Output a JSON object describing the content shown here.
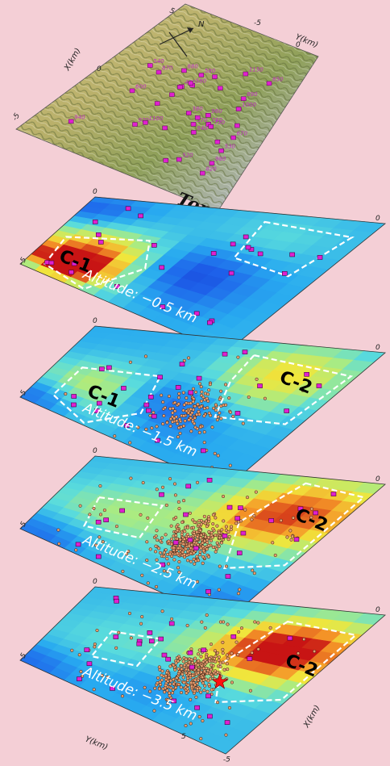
{
  "topo": {
    "label": "Topo",
    "north": "N",
    "x_axis": "X(km)",
    "y_axis": "Y(km)",
    "ticks": [
      "-5",
      "0",
      "5"
    ],
    "station_labels": [
      "940",
      "880",
      "760",
      "920",
      "730",
      "940",
      "890",
      "1100",
      "1150",
      "960",
      "980",
      "600",
      "530",
      "570",
      "820",
      "450",
      "1000",
      "870",
      "580",
      "670",
      "520",
      "540",
      "380",
      "580",
      "850"
    ]
  },
  "layers": [
    {
      "altitude": "Altitude: −0.5 km",
      "clusters": [
        "C-1"
      ],
      "quakes": 0
    },
    {
      "altitude": "Altitude: −1.5 km",
      "clusters": [
        "C-1",
        "C-2"
      ],
      "quakes": 160
    },
    {
      "altitude": "Altitude: −2.5 km",
      "clusters": [
        "C-2"
      ],
      "quakes": 420
    },
    {
      "altitude": "Altitude: −3.5 km",
      "clusters": [
        "C-2"
      ],
      "quakes": 380
    }
  ],
  "bottom_axes": {
    "x": "X(km)",
    "y": "Y(km)"
  },
  "colors": {
    "background": "#f4cfd6",
    "station": "#e020d0",
    "quake": "#e8a070",
    "hypocenter": "#ff1010",
    "contour": "#ffffff"
  }
}
